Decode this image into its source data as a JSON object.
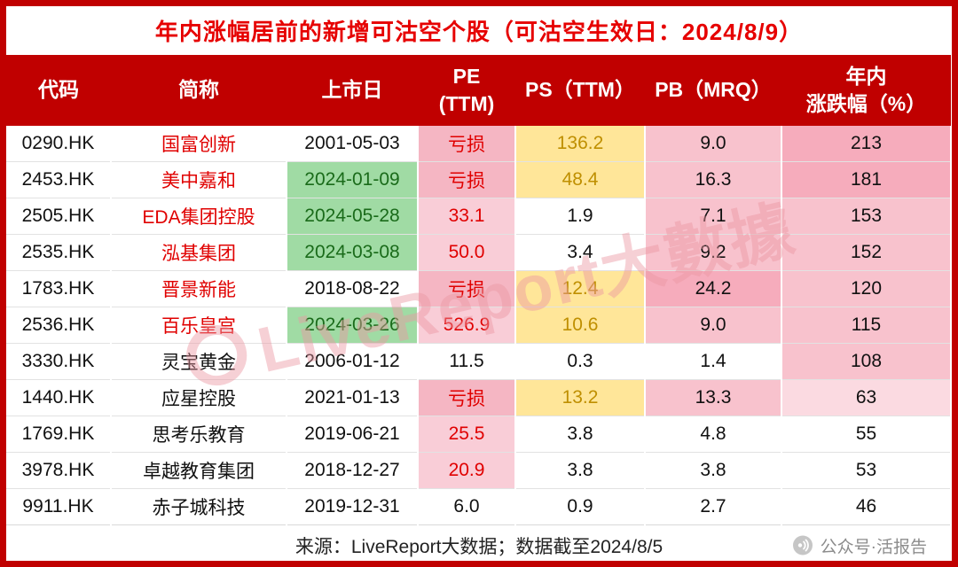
{
  "title": "年内涨幅居前的新增可沽空个股（可沽空生效日：2024/8/9）",
  "watermark": {
    "text": "LiveReport大數據"
  },
  "footer": {
    "source": "来源：LiveReport大数据；数据截至2024/8/5",
    "wechat_label": "公众号·活报告"
  },
  "colors": {
    "brand_red": "#C00000",
    "title_red": "#E60000",
    "green_bg": "#A0DBA4",
    "yellow_bg": "#FFE699",
    "yellow_text": "#BF8F00",
    "pink_strong": "#F6ACBC",
    "pink_mid": "#F8C2CD",
    "pink_light": "#FBDAE1",
    "loss_text": "#E00000"
  },
  "chart_data": {
    "type": "table",
    "title": "年内涨幅居前的新增可沽空个股（可沽空生效日：2024/8/9）",
    "columns": [
      {
        "key": "code",
        "lines": [
          "代码"
        ]
      },
      {
        "key": "name",
        "lines": [
          "简称"
        ]
      },
      {
        "key": "date",
        "lines": [
          "上市日"
        ]
      },
      {
        "key": "pe",
        "lines": [
          "PE",
          "(TTM)"
        ]
      },
      {
        "key": "ps",
        "lines": [
          "PS（TTM）"
        ]
      },
      {
        "key": "pb",
        "lines": [
          "PB（MRQ）"
        ]
      },
      {
        "key": "pct",
        "lines": [
          "年内",
          "涨跌幅（%）"
        ]
      }
    ],
    "rows": [
      {
        "code": "0290.HK",
        "name": "国富创新",
        "date": "2001-05-03",
        "pe": "亏损",
        "ps": "136.2",
        "pb": "9.0",
        "pct": "213",
        "styles": {
          "name": "name-red",
          "pe": "cell-loss",
          "ps": "cell-yellow",
          "pb": "bg-pink2",
          "pct": "bg-pink3"
        }
      },
      {
        "code": "2453.HK",
        "name": "美中嘉和",
        "date": "2024-01-09",
        "pe": "亏损",
        "ps": "48.4",
        "pb": "16.3",
        "pct": "181",
        "styles": {
          "name": "name-red",
          "date": "bg-green",
          "pe": "cell-loss",
          "ps": "cell-yellow",
          "pb": "bg-pink2",
          "pct": "bg-pink3"
        }
      },
      {
        "code": "2505.HK",
        "name": "EDA集团控股",
        "date": "2024-05-28",
        "pe": "33.1",
        "ps": "1.9",
        "pb": "7.1",
        "pct": "153",
        "styles": {
          "name": "name-red",
          "date": "bg-green",
          "pe": "cell-pe-hi",
          "pb": "bg-pink2",
          "pct": "bg-pink2"
        }
      },
      {
        "code": "2535.HK",
        "name": "泓基集团",
        "date": "2024-03-08",
        "pe": "50.0",
        "ps": "3.4",
        "pb": "9.2",
        "pct": "152",
        "styles": {
          "name": "name-red",
          "date": "bg-green",
          "pe": "cell-pe-hi",
          "pb": "bg-pink2",
          "pct": "bg-pink2"
        }
      },
      {
        "code": "1783.HK",
        "name": "晋景新能",
        "date": "2018-08-22",
        "pe": "亏损",
        "ps": "12.4",
        "pb": "24.2",
        "pct": "120",
        "styles": {
          "name": "name-red",
          "pe": "cell-loss",
          "ps": "cell-yellow",
          "pb": "bg-pink3",
          "pct": "bg-pink2"
        }
      },
      {
        "code": "2536.HK",
        "name": "百乐皇宫",
        "date": "2024-03-26",
        "pe": "526.9",
        "ps": "10.6",
        "pb": "9.0",
        "pct": "115",
        "styles": {
          "name": "name-red",
          "date": "bg-green",
          "pe": "cell-pe-hi",
          "ps": "cell-yellow",
          "pb": "bg-pink2",
          "pct": "bg-pink2"
        }
      },
      {
        "code": "3330.HK",
        "name": "灵宝黄金",
        "date": "2006-01-12",
        "pe": "11.5",
        "ps": "0.3",
        "pb": "1.4",
        "pct": "108",
        "styles": {
          "pct": "bg-pink2"
        }
      },
      {
        "code": "1440.HK",
        "name": "应星控股",
        "date": "2021-01-13",
        "pe": "亏损",
        "ps": "13.2",
        "pb": "13.3",
        "pct": "63",
        "styles": {
          "pe": "cell-loss",
          "ps": "cell-yellow",
          "pb": "bg-pink2",
          "pct": "bg-pink1"
        }
      },
      {
        "code": "1769.HK",
        "name": "思考乐教育",
        "date": "2019-06-21",
        "pe": "25.5",
        "ps": "3.8",
        "pb": "4.8",
        "pct": "55",
        "styles": {
          "pe": "cell-pe-hi"
        }
      },
      {
        "code": "3978.HK",
        "name": "卓越教育集团",
        "date": "2018-12-27",
        "pe": "20.9",
        "ps": "3.8",
        "pb": "3.8",
        "pct": "53",
        "styles": {
          "pe": "cell-pe-hi"
        }
      },
      {
        "code": "9911.HK",
        "name": "赤子城科技",
        "date": "2019-12-31",
        "pe": "6.0",
        "ps": "0.9",
        "pb": "2.7",
        "pct": "46",
        "styles": {}
      }
    ]
  }
}
